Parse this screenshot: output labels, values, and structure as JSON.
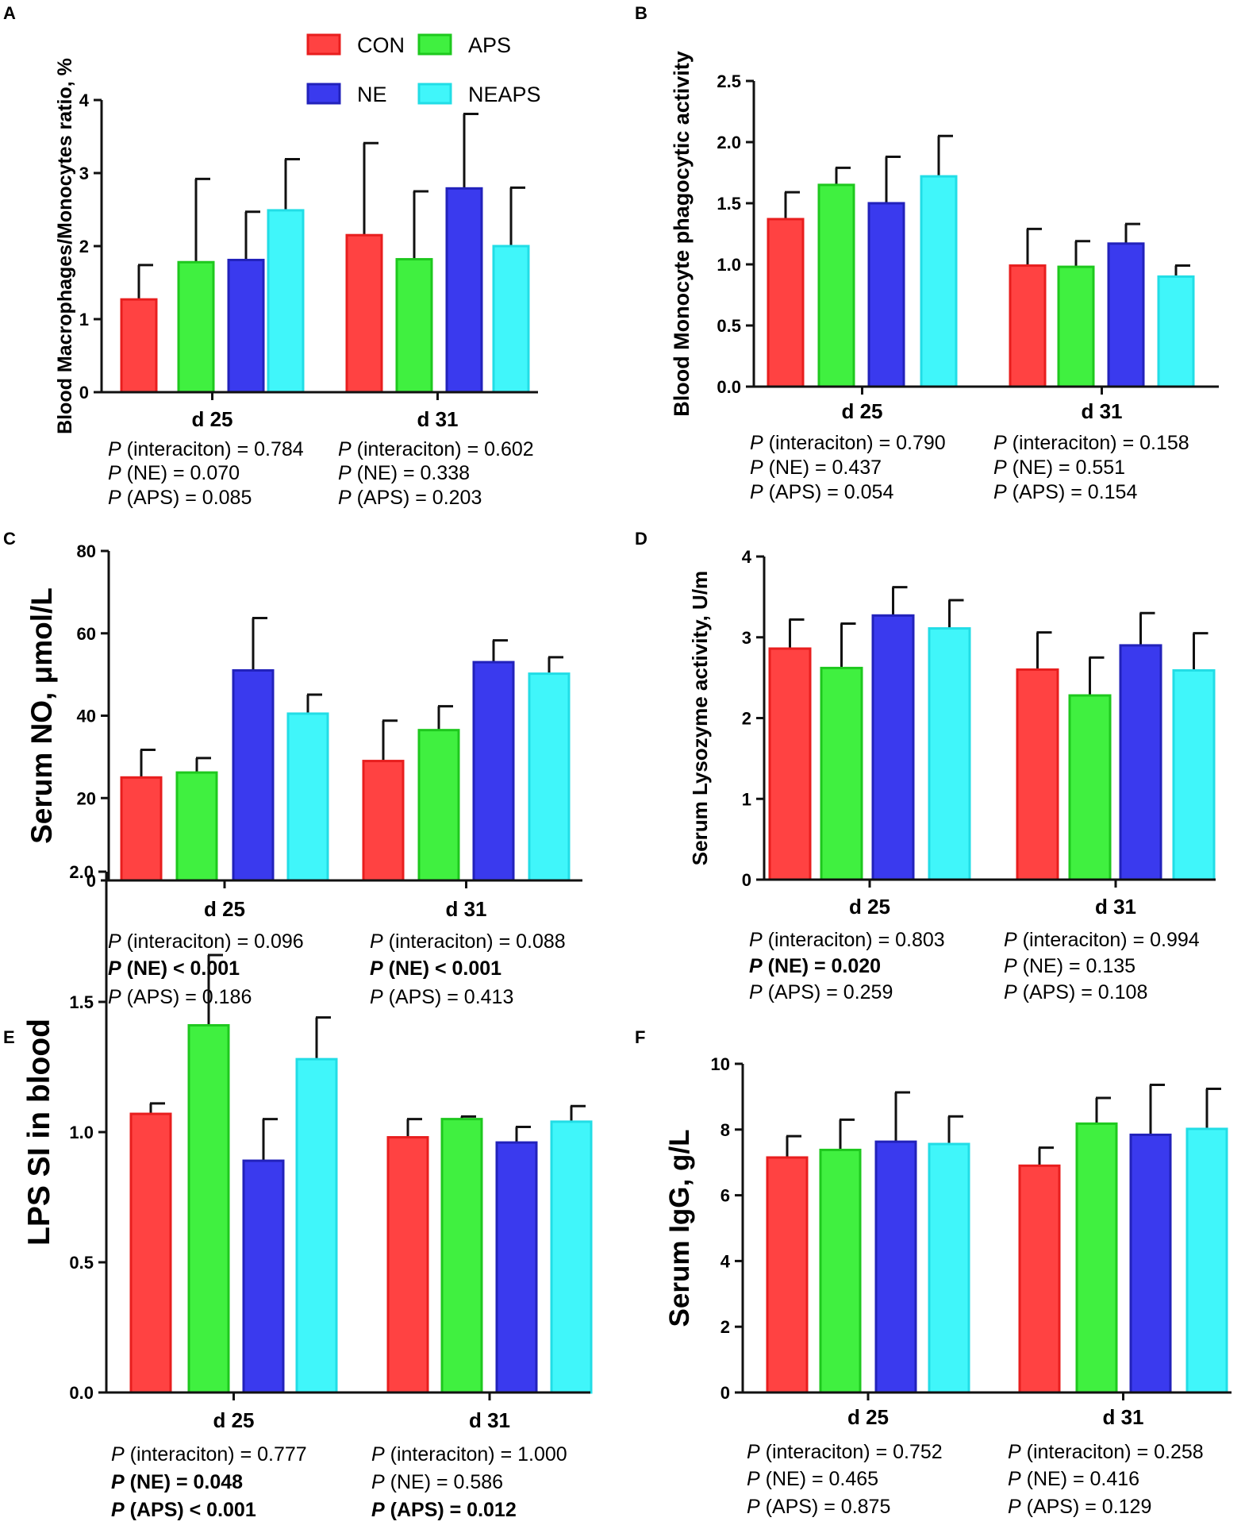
{
  "legend": [
    {
      "name": "CON",
      "color": "#ff4242",
      "edge": "#e81e1e"
    },
    {
      "name": "APS",
      "color": "#40f040",
      "edge": "#1ec81e"
    },
    {
      "name": "NE",
      "color": "#3a3aee",
      "edge": "#2222bb"
    },
    {
      "name": "NEAPS",
      "color": "#40f6fa",
      "edge": "#22dde6"
    }
  ],
  "chart_data": [
    {
      "panel": "A",
      "type": "bar",
      "ylabel": "Blood Macrophages/Monocytes ratio, %",
      "ylim": [
        0,
        4
      ],
      "yticks": [
        "0",
        "1",
        "2",
        "3",
        "4"
      ],
      "categories": [
        "d 25",
        "d 31"
      ],
      "series": [
        {
          "name": "CON",
          "values": [
            1.27,
            2.15
          ],
          "errors": [
            0.47,
            1.26
          ]
        },
        {
          "name": "APS",
          "values": [
            1.78,
            1.82
          ],
          "errors": [
            1.14,
            0.93
          ]
        },
        {
          "name": "NE",
          "values": [
            1.81,
            2.79
          ],
          "errors": [
            0.66,
            1.02
          ]
        },
        {
          "name": "NEAPS",
          "values": [
            2.49,
            2.0
          ],
          "errors": [
            0.7,
            0.8
          ]
        }
      ],
      "pvalues": [
        [
          {
            "label": "P",
            "text": " (interaciton) = 0.784",
            "bold": false
          },
          {
            "label": "P",
            "text": " (NE) = 0.070",
            "bold": false
          },
          {
            "label": "P",
            "text": " (APS) = 0.085",
            "bold": false
          }
        ],
        [
          {
            "label": "P",
            "text": " (interaciton) = 0.602",
            "bold": false
          },
          {
            "label": "P",
            "text": " (NE) = 0.338",
            "bold": false
          },
          {
            "label": "P",
            "text": " (APS) = 0.203",
            "bold": false
          }
        ]
      ]
    },
    {
      "panel": "B",
      "type": "bar",
      "ylabel": "Blood Monocyte phagocytic activity",
      "ylim": [
        0,
        2.5
      ],
      "yticks": [
        "0.0",
        "0.5",
        "1.0",
        "1.5",
        "2.0",
        "2.5"
      ],
      "categories": [
        "d 25",
        "d 31"
      ],
      "series": [
        {
          "name": "CON",
          "values": [
            1.37,
            0.99
          ],
          "errors": [
            0.22,
            0.3
          ]
        },
        {
          "name": "APS",
          "values": [
            1.65,
            0.98
          ],
          "errors": [
            0.14,
            0.21
          ]
        },
        {
          "name": "NE",
          "values": [
            1.5,
            1.17
          ],
          "errors": [
            0.38,
            0.16
          ]
        },
        {
          "name": "NEAPS",
          "values": [
            1.72,
            0.9
          ],
          "errors": [
            0.33,
            0.09
          ]
        }
      ],
      "pvalues": [
        [
          {
            "label": "P",
            "text": " (interaciton) = 0.790",
            "bold": false
          },
          {
            "label": "P",
            "text": " (NE) = 0.437",
            "bold": false
          },
          {
            "label": "P",
            "text": " (APS) = 0.054",
            "bold": false
          }
        ],
        [
          {
            "label": "P",
            "text": " (interaciton) = 0.158",
            "bold": false
          },
          {
            "label": "P",
            "text": " (NE) = 0.551",
            "bold": false
          },
          {
            "label": "P",
            "text": " (APS) = 0.154",
            "bold": false
          }
        ]
      ]
    },
    {
      "panel": "C",
      "type": "bar",
      "ylabel": "Serum NO, μmol/L",
      "ylim": [
        0,
        80
      ],
      "yticks": [
        "0",
        "20",
        "40",
        "60",
        "80"
      ],
      "categories": [
        "d 25",
        "d 31"
      ],
      "series": [
        {
          "name": "CON",
          "values": [
            25.0,
            29.0
          ],
          "errors": [
            6.7,
            9.8
          ]
        },
        {
          "name": "APS",
          "values": [
            26.2,
            36.5
          ],
          "errors": [
            3.5,
            5.8
          ]
        },
        {
          "name": "NE",
          "values": [
            51.0,
            53.0
          ],
          "errors": [
            12.7,
            5.3
          ]
        },
        {
          "name": "NEAPS",
          "values": [
            40.5,
            50.2
          ],
          "errors": [
            4.6,
            4.0
          ]
        }
      ],
      "pvalues": [
        [
          {
            "label": "P",
            "text": " (interaciton) = 0.096",
            "bold": false
          },
          {
            "label": "P",
            "text": " (NE) < 0.001",
            "bold": true
          },
          {
            "label": "P",
            "text": " (APS) = 0.186",
            "bold": false
          }
        ],
        [
          {
            "label": "P",
            "text": " (interaciton) = 0.088",
            "bold": false
          },
          {
            "label": "P",
            "text": " (NE) < 0.001",
            "bold": true
          },
          {
            "label": "P",
            "text": " (APS) = 0.413",
            "bold": false
          }
        ]
      ]
    },
    {
      "panel": "D",
      "type": "bar",
      "ylabel": "Serum Lysozyme activity, U/m",
      "ylim": [
        0,
        4
      ],
      "yticks": [
        "0",
        "1",
        "2",
        "3",
        "4"
      ],
      "categories": [
        "d 25",
        "d 31"
      ],
      "series": [
        {
          "name": "CON",
          "values": [
            2.86,
            2.6
          ],
          "errors": [
            0.36,
            0.46
          ]
        },
        {
          "name": "APS",
          "values": [
            2.62,
            2.28
          ],
          "errors": [
            0.55,
            0.47
          ]
        },
        {
          "name": "NE",
          "values": [
            3.27,
            2.9
          ],
          "errors": [
            0.35,
            0.4
          ]
        },
        {
          "name": "NEAPS",
          "values": [
            3.11,
            2.59
          ],
          "errors": [
            0.35,
            0.46
          ]
        }
      ],
      "pvalues": [
        [
          {
            "label": "P",
            "text": " (interaciton) = 0.803",
            "bold": false
          },
          {
            "label": "P",
            "text": " (NE) = 0.020",
            "bold": true
          },
          {
            "label": "P",
            "text": " (APS) = 0.259",
            "bold": false
          }
        ],
        [
          {
            "label": "P",
            "text": " (interaciton) = 0.994",
            "bold": false
          },
          {
            "label": "P",
            "text": " (NE) = 0.135",
            "bold": false
          },
          {
            "label": "P",
            "text": " (APS) = 0.108",
            "bold": false
          }
        ]
      ]
    },
    {
      "panel": "E",
      "type": "bar",
      "ylabel": "LPS SI in blood",
      "ylim": [
        0,
        2
      ],
      "yticks": [
        "0.0",
        "0.5",
        "1.0",
        "1.5",
        "2.0"
      ],
      "categories": [
        "d 25",
        "d 31"
      ],
      "series": [
        {
          "name": "CON",
          "values": [
            1.07,
            0.98
          ],
          "errors": [
            0.04,
            0.07
          ]
        },
        {
          "name": "APS",
          "values": [
            1.41,
            1.05
          ],
          "errors": [
            0.27,
            0.01
          ]
        },
        {
          "name": "NE",
          "values": [
            0.89,
            0.96
          ],
          "errors": [
            0.16,
            0.06
          ]
        },
        {
          "name": "NEAPS",
          "values": [
            1.28,
            1.04
          ],
          "errors": [
            0.16,
            0.06
          ]
        }
      ],
      "pvalues": [
        [
          {
            "label": "P",
            "text": " (interaciton) = 0.777",
            "bold": false
          },
          {
            "label": "P",
            "text": " (NE) = 0.048",
            "bold": true
          },
          {
            "label": "P",
            "text": " (APS) < 0.001",
            "bold": true
          }
        ],
        [
          {
            "label": "P",
            "text": " (interaciton) = 1.000",
            "bold": false
          },
          {
            "label": "P",
            "text": " (NE) = 0.586",
            "bold": false
          },
          {
            "label": "P",
            "text": " (APS) = 0.012",
            "bold": true
          }
        ]
      ]
    },
    {
      "panel": "F",
      "type": "bar",
      "ylabel": "Serum IgG, g/L",
      "ylim": [
        0,
        10
      ],
      "yticks": [
        "0",
        "2",
        "4",
        "6",
        "8",
        "10"
      ],
      "categories": [
        "d 25",
        "d 31"
      ],
      "series": [
        {
          "name": "CON",
          "values": [
            7.15,
            6.9
          ],
          "errors": [
            0.65,
            0.55
          ]
        },
        {
          "name": "APS",
          "values": [
            7.38,
            8.18
          ],
          "errors": [
            0.92,
            0.78
          ]
        },
        {
          "name": "NE",
          "values": [
            7.63,
            7.84
          ],
          "errors": [
            1.5,
            1.52
          ]
        },
        {
          "name": "NEAPS",
          "values": [
            7.56,
            8.02
          ],
          "errors": [
            0.84,
            1.22
          ]
        }
      ],
      "pvalues": [
        [
          {
            "label": "P",
            "text": " (interaciton) = 0.752",
            "bold": false
          },
          {
            "label": "P",
            "text": " (NE) = 0.465",
            "bold": false
          },
          {
            "label": "P",
            "text": " (APS) = 0.875",
            "bold": false
          }
        ],
        [
          {
            "label": "P",
            "text": " (interaciton) = 0.258",
            "bold": false
          },
          {
            "label": "P",
            "text": " (NE) = 0.416",
            "bold": false
          },
          {
            "label": "P",
            "text": " (APS) = 0.129",
            "bold": false
          }
        ]
      ]
    }
  ]
}
